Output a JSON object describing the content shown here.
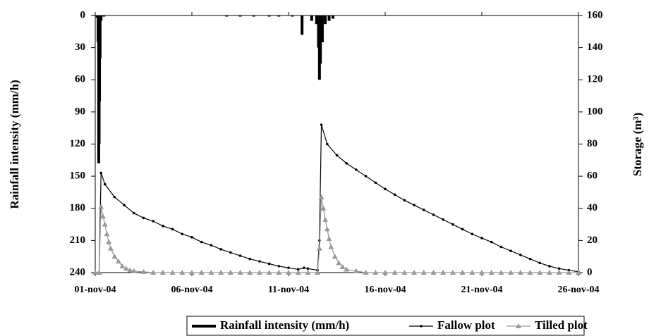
{
  "chart_data": {
    "type": "line",
    "y_label": "Rainfall intensity (mm/h)",
    "y2_label": "Storage (m³)",
    "xlim": [
      0,
      25
    ],
    "xticks": [
      {
        "value": 0,
        "label": "01-nov-04"
      },
      {
        "value": 5,
        "label": "06-nov-04"
      },
      {
        "value": 10,
        "label": "11-nov-04"
      },
      {
        "value": 15,
        "label": "16-nov-04"
      },
      {
        "value": 20,
        "label": "21-nov-04"
      },
      {
        "value": 25,
        "label": "26-nov-04"
      }
    ],
    "ylim": [
      0,
      240
    ],
    "y_inverted": true,
    "yticks": [
      0,
      30,
      60,
      90,
      120,
      150,
      180,
      210,
      240
    ],
    "y2lim": [
      0,
      160
    ],
    "y2ticks": [
      0,
      20,
      40,
      60,
      80,
      100,
      120,
      140,
      160
    ],
    "legend": "bottom",
    "series": [
      {
        "name": "Rainfall intensity (mm/h)",
        "type": "bar",
        "color": "#000000",
        "x": [
          0.1,
          0.15,
          0.18,
          0.2,
          0.22,
          0.25,
          0.3,
          0.45,
          6.8,
          7.5,
          8.2,
          9,
          9.5,
          10.2,
          10.7,
          11.2,
          11.45,
          11.55,
          11.6,
          11.65,
          11.75,
          11.9,
          12.1,
          12.3
        ],
        "values": [
          2,
          25,
          138,
          120,
          80,
          40,
          5,
          1,
          1,
          1,
          1,
          1,
          1,
          1,
          18,
          5,
          8,
          30,
          60,
          45,
          25,
          8,
          5,
          3
        ]
      },
      {
        "name": "Fallow plot",
        "color": "#000000",
        "marker": "dot",
        "axis": "y2",
        "x": [
          0,
          0.2,
          0.3,
          0.5,
          1,
          1.5,
          2,
          2.5,
          3,
          3.5,
          4,
          4.5,
          5,
          5.5,
          6,
          6.5,
          7,
          7.5,
          8,
          8.5,
          9,
          9.5,
          10,
          10.5,
          10.8,
          11,
          11.5,
          11.6,
          11.7,
          12,
          12.5,
          13,
          13.5,
          14,
          14.5,
          15,
          15.5,
          16,
          16.5,
          17,
          17.5,
          18,
          18.5,
          19,
          19.5,
          20,
          20.5,
          21,
          21.5,
          22,
          22.5,
          23,
          23.5,
          24,
          24.5,
          25
        ],
        "values": [
          0,
          0,
          62,
          55,
          47,
          42,
          37,
          34,
          32,
          29,
          27,
          24,
          22,
          19,
          17,
          14.5,
          12.5,
          10.5,
          8.5,
          7,
          5.5,
          4,
          3,
          2,
          3,
          2.5,
          1.5,
          20,
          92,
          80,
          73,
          68,
          64,
          60,
          56,
          52,
          48.5,
          45,
          42,
          39,
          36,
          33,
          30,
          27,
          24,
          21.5,
          19,
          16,
          13.5,
          11,
          8.5,
          6,
          4,
          2.5,
          1.5,
          0.5
        ]
      },
      {
        "name": "Tilled plot",
        "color": "#999999",
        "marker": "triangle",
        "axis": "y2",
        "x": [
          0,
          0.2,
          0.3,
          0.4,
          0.5,
          0.6,
          0.7,
          0.8,
          1,
          1.2,
          1.4,
          1.6,
          1.8,
          2,
          2.5,
          3,
          3.5,
          4,
          4.5,
          5,
          5.5,
          6,
          6.5,
          7,
          7.5,
          8,
          8.5,
          9,
          9.5,
          10,
          10.5,
          11,
          11.5,
          11.6,
          11.7,
          11.8,
          11.9,
          12,
          12.1,
          12.2,
          12.4,
          12.6,
          12.8,
          13,
          13.5,
          14,
          14.5,
          15,
          15.5,
          16,
          16.5,
          17,
          17.5,
          18,
          18.5,
          19,
          19.5,
          20,
          20.5,
          21,
          21.5,
          22,
          22.5,
          23,
          23.5,
          24,
          24.5,
          25
        ],
        "values": [
          0,
          0,
          41,
          35,
          30,
          24,
          19,
          15,
          10,
          7,
          4,
          2.5,
          1.5,
          1,
          0.5,
          0,
          0,
          0,
          0,
          0,
          0,
          0,
          0,
          0,
          0,
          0,
          0,
          0,
          0,
          0,
          0,
          0,
          0,
          15,
          47,
          40,
          33,
          27,
          21,
          16,
          10,
          6,
          3.5,
          2,
          1,
          0,
          0,
          0,
          0,
          0,
          0,
          0,
          0,
          0,
          0,
          0,
          0,
          0,
          0,
          0,
          0,
          0,
          0,
          0,
          0,
          0,
          0,
          0
        ]
      }
    ]
  }
}
